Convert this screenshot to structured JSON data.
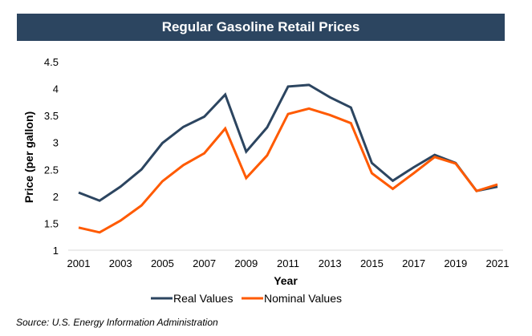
{
  "chart_data": {
    "type": "line",
    "title": "Regular Gasoline Retail Prices",
    "xlabel": "Year",
    "ylabel": "Price (per gallon)",
    "x": [
      2001,
      2002,
      2003,
      2004,
      2005,
      2006,
      2007,
      2008,
      2009,
      2010,
      2011,
      2012,
      2013,
      2014,
      2015,
      2016,
      2017,
      2018,
      2019,
      2020,
      2021
    ],
    "xticks": [
      "2001",
      "2003",
      "2005",
      "2007",
      "2009",
      "2011",
      "2013",
      "2015",
      "2017",
      "2019",
      "2021"
    ],
    "yticks": [
      "1",
      "1.5",
      "2",
      "2.5",
      "3",
      "3.5",
      "4",
      "4.5"
    ],
    "ylim": [
      1,
      4.5
    ],
    "grid": false,
    "legend_position": "bottom",
    "series": [
      {
        "name": "Real Values",
        "color": "#2c4560",
        "values": [
          2.07,
          1.92,
          2.18,
          2.5,
          2.99,
          3.29,
          3.48,
          3.89,
          2.83,
          3.28,
          4.04,
          4.07,
          3.84,
          3.65,
          2.62,
          2.29,
          2.54,
          2.77,
          2.62,
          2.1,
          2.18
        ]
      },
      {
        "name": "Nominal Values",
        "color": "#ff5a00",
        "values": [
          1.42,
          1.33,
          1.55,
          1.83,
          2.28,
          2.58,
          2.8,
          3.26,
          2.34,
          2.76,
          3.53,
          3.63,
          3.51,
          3.36,
          2.43,
          2.14,
          2.43,
          2.73,
          2.61,
          2.1,
          2.22
        ]
      }
    ]
  },
  "source": "Source: U.S. Energy Information Administration"
}
